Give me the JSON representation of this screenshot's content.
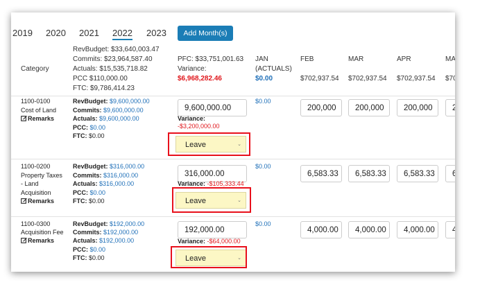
{
  "years": [
    "2019",
    "2020",
    "2021",
    "2022",
    "2023"
  ],
  "selected_year": "2022",
  "add_button": "Add Month(s)",
  "header": {
    "category": "Category",
    "summary": [
      "RevBudget: $33,640,003.47",
      "Commits: $23,964,587.40",
      "Actuals: $15,535,718.82",
      "PCC $110,000.00",
      "FTC: $9,786,414.23"
    ],
    "pfc": "PFC: $33,751,001.63",
    "variance_label": "Variance:",
    "variance_value": "$6,968,282.46",
    "months": [
      {
        "name": "JAN",
        "sub": "(ACTUALS)",
        "value": "$0.00"
      },
      {
        "name": "FEB",
        "value": "$702,937.54"
      },
      {
        "name": "MAR",
        "value": "$702,937.54"
      },
      {
        "name": "APR",
        "value": "$702,937.54"
      },
      {
        "name": "MA",
        "value": "$70"
      }
    ]
  },
  "rows": [
    {
      "code": "1100-0100",
      "name": [
        "Cost of Land"
      ],
      "remarks": "Remarks",
      "summary": [
        {
          "label": "RevBudget:",
          "value": "$9,600,000.00"
        },
        {
          "label": "Commits:",
          "value": "$9,600,000.00"
        },
        {
          "label": "Actuals:",
          "value": "$9,600,000.00"
        },
        {
          "label": "PCC:",
          "value": "$0.00"
        },
        {
          "label": "FTC:",
          "value": "$0.00"
        }
      ],
      "pfc": "9,600,000.00",
      "jan": "$0.00",
      "variance_label": "Variance:",
      "variance_value": "-$3,200,000.00",
      "select": "Leave",
      "months": [
        "200,000",
        "200,000",
        "200,000",
        "2"
      ]
    },
    {
      "code": "1100-0200",
      "name": [
        "Property Taxes",
        "- Land",
        "Acquisition"
      ],
      "remarks": "Remarks",
      "summary": [
        {
          "label": "RevBudget:",
          "value": "$316,000.00"
        },
        {
          "label": "Commits:",
          "value": "$316,000.00"
        },
        {
          "label": "Actuals:",
          "value": "$316,000.00"
        },
        {
          "label": "PCC:",
          "value": "$0.00"
        },
        {
          "label": "FTC:",
          "value": "$0.00"
        }
      ],
      "pfc": "316,000.00",
      "jan": "$0.00",
      "variance_label": "Variance:",
      "variance_value": "-$105,333.44",
      "select": "Leave",
      "months": [
        "6,583.33",
        "6,583.33",
        "6,583.33",
        "6"
      ]
    },
    {
      "code": "1100-0300",
      "name": [
        "Acquisition Fee"
      ],
      "remarks": "Remarks",
      "summary": [
        {
          "label": "RevBudget:",
          "value": "$192,000.00"
        },
        {
          "label": "Commits:",
          "value": "$192,000.00"
        },
        {
          "label": "Actuals:",
          "value": "$192,000.00"
        },
        {
          "label": "PCC:",
          "value": "$0.00"
        },
        {
          "label": "FTC:",
          "value": "$0.00"
        }
      ],
      "pfc": "192,000.00",
      "jan": "$0.00",
      "variance_label": "Variance:",
      "variance_value": "-$64,000.00",
      "select": "Leave",
      "months": [
        "4,000.00",
        "4,000.00",
        "4,000.00",
        "4"
      ]
    }
  ]
}
